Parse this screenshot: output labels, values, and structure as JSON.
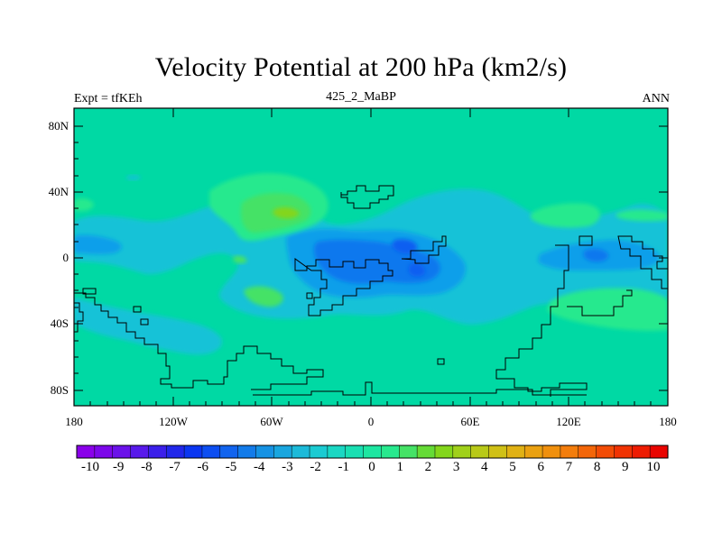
{
  "figure": {
    "title": "Velocity Potential at 200 hPa (km2/s)",
    "left_label": "Expt = tfKEh",
    "center_label": "425_2_MaBP",
    "right_label": "ANN"
  },
  "map": {
    "lat_ticks": [
      "80N",
      "40N",
      "0",
      "40S",
      "80S"
    ],
    "lon_ticks": [
      "180",
      "120W",
      "60W",
      "0",
      "60E",
      "120E",
      "180"
    ],
    "background_color": "#00d9a4"
  },
  "colorbar": {
    "labels": [
      "-10",
      "-9",
      "-8",
      "-7",
      "-6",
      "-5",
      "-4",
      "-3",
      "-2",
      "-1",
      "0",
      "1",
      "2",
      "3",
      "4",
      "5",
      "6",
      "7",
      "8",
      "9",
      "10"
    ],
    "colors": [
      "#8a00ea",
      "#7c07ea",
      "#6b12ea",
      "#5819ea",
      "#3b1fea",
      "#2127ea",
      "#0b36f1",
      "#0d4ef1",
      "#1264ee",
      "#137be9",
      "#1692e3",
      "#19a6df",
      "#1cbad9",
      "#1bcbd2",
      "#1ad7c3",
      "#19dfb2",
      "#1de6a1",
      "#28e98e",
      "#45e266",
      "#65db36",
      "#83d61b",
      "#a0d01a",
      "#b8c918",
      "#cfc016",
      "#e0b114",
      "#eaa111",
      "#f0900e",
      "#f37d0c",
      "#f36609",
      "#f24c06",
      "#f03303",
      "#ee1c02",
      "#e90400"
    ]
  }
}
